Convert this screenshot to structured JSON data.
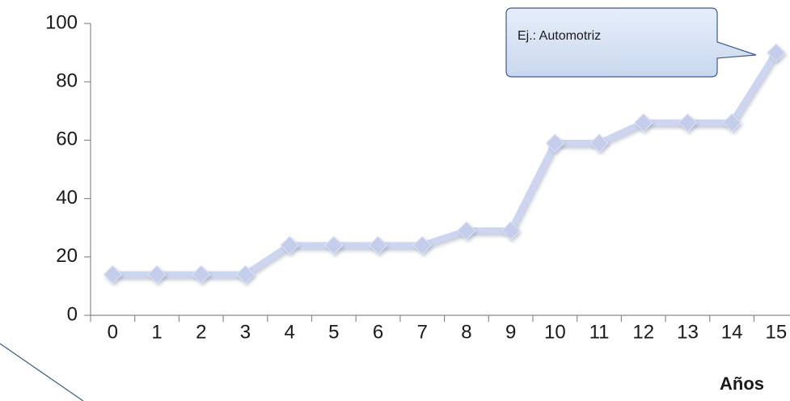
{
  "chart_data": {
    "type": "line",
    "x_label": "Años",
    "annotation": "Ej.: Automotriz",
    "categories": [
      "0",
      "1",
      "2",
      "3",
      "4",
      "5",
      "6",
      "7",
      "8",
      "9",
      "10",
      "11",
      "12",
      "13",
      "14",
      "15"
    ],
    "values": [
      14,
      14,
      14,
      14,
      24,
      24,
      24,
      24,
      29,
      29,
      59,
      59,
      66,
      66,
      66,
      90
    ],
    "color": "#cdd5f0",
    "ylim": [
      0,
      100
    ],
    "yticks": [
      0,
      20,
      40,
      60,
      80,
      100
    ],
    "grid": false
  }
}
